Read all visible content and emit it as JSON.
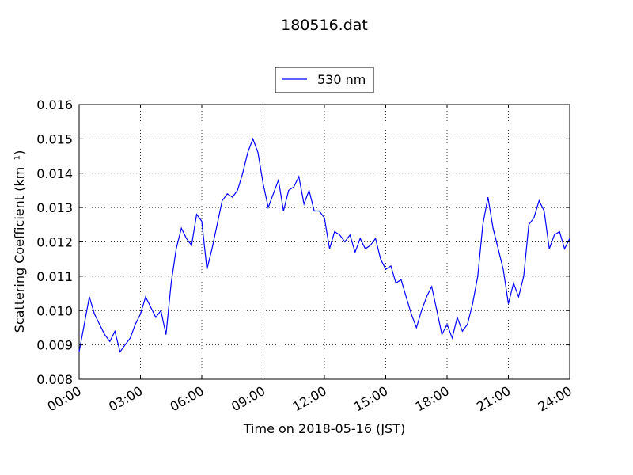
{
  "chart_data": {
    "type": "line",
    "title": "180516.dat",
    "xlabel": "Time on 2018-05-16 (JST)",
    "ylabel": "Scattering Coefficient (km⁻¹)",
    "xlim": [
      "00:00",
      "24:00"
    ],
    "ylim": [
      0.008,
      0.016
    ],
    "x_ticks": [
      "00:00",
      "03:00",
      "06:00",
      "09:00",
      "12:00",
      "15:00",
      "18:00",
      "21:00",
      "24:00"
    ],
    "y_ticks": [
      "0.008",
      "0.009",
      "0.010",
      "0.011",
      "0.012",
      "0.013",
      "0.014",
      "0.015",
      "0.016"
    ],
    "grid": true,
    "legend_position": "top-center (above plot)",
    "series": [
      {
        "name": "530 nm",
        "color": "#0000ff",
        "x": [
          "00:00",
          "00:15",
          "00:30",
          "00:45",
          "01:00",
          "01:15",
          "01:30",
          "01:45",
          "02:00",
          "02:15",
          "02:30",
          "02:45",
          "03:00",
          "03:15",
          "03:30",
          "03:45",
          "04:00",
          "04:15",
          "04:30",
          "04:45",
          "05:00",
          "05:15",
          "05:30",
          "05:45",
          "06:00",
          "06:15",
          "06:30",
          "06:45",
          "07:00",
          "07:15",
          "07:30",
          "07:45",
          "08:00",
          "08:15",
          "08:30",
          "08:45",
          "09:00",
          "09:15",
          "09:30",
          "09:45",
          "10:00",
          "10:15",
          "10:30",
          "10:45",
          "11:00",
          "11:15",
          "11:30",
          "11:45",
          "12:00",
          "12:15",
          "12:30",
          "12:45",
          "13:00",
          "13:15",
          "13:30",
          "13:45",
          "14:00",
          "14:15",
          "14:30",
          "14:45",
          "15:00",
          "15:15",
          "15:30",
          "15:45",
          "16:00",
          "16:15",
          "16:30",
          "16:45",
          "17:00",
          "17:15",
          "17:30",
          "17:45",
          "18:00",
          "18:15",
          "18:30",
          "18:45",
          "19:00",
          "19:15",
          "19:30",
          "19:45",
          "20:00",
          "20:15",
          "20:30",
          "20:45",
          "21:00",
          "21:15",
          "21:30",
          "21:45",
          "22:00",
          "22:15",
          "22:30",
          "22:45",
          "23:00",
          "23:15",
          "23:30",
          "23:45",
          "24:00"
        ],
        "y": [
          0.0088,
          0.0096,
          0.0104,
          0.0099,
          0.0096,
          0.0093,
          0.0091,
          0.0094,
          0.0088,
          0.009,
          0.0092,
          0.0096,
          0.0099,
          0.0104,
          0.0101,
          0.0098,
          0.01,
          0.0093,
          0.0108,
          0.0118,
          0.0124,
          0.0121,
          0.0119,
          0.0128,
          0.0126,
          0.0112,
          0.0118,
          0.0125,
          0.0132,
          0.0134,
          0.0133,
          0.0135,
          0.014,
          0.0146,
          0.015,
          0.0146,
          0.0137,
          0.013,
          0.0134,
          0.0138,
          0.0129,
          0.0135,
          0.0136,
          0.0139,
          0.0131,
          0.0135,
          0.0129,
          0.0129,
          0.0127,
          0.0118,
          0.0123,
          0.0122,
          0.012,
          0.0122,
          0.0117,
          0.0121,
          0.0118,
          0.0119,
          0.0121,
          0.0115,
          0.0112,
          0.0113,
          0.0108,
          0.0109,
          0.0104,
          0.0099,
          0.0095,
          0.01,
          0.0104,
          0.0107,
          0.01,
          0.0093,
          0.0096,
          0.0092,
          0.0098,
          0.0094,
          0.0096,
          0.0102,
          0.011,
          0.0125,
          0.0133,
          0.0124,
          0.0118,
          0.0112,
          0.0102,
          0.0108,
          0.0104,
          0.011,
          0.0125,
          0.0127,
          0.0132,
          0.0129,
          0.0118,
          0.0122,
          0.0123,
          0.0118,
          0.0121
        ]
      }
    ]
  }
}
